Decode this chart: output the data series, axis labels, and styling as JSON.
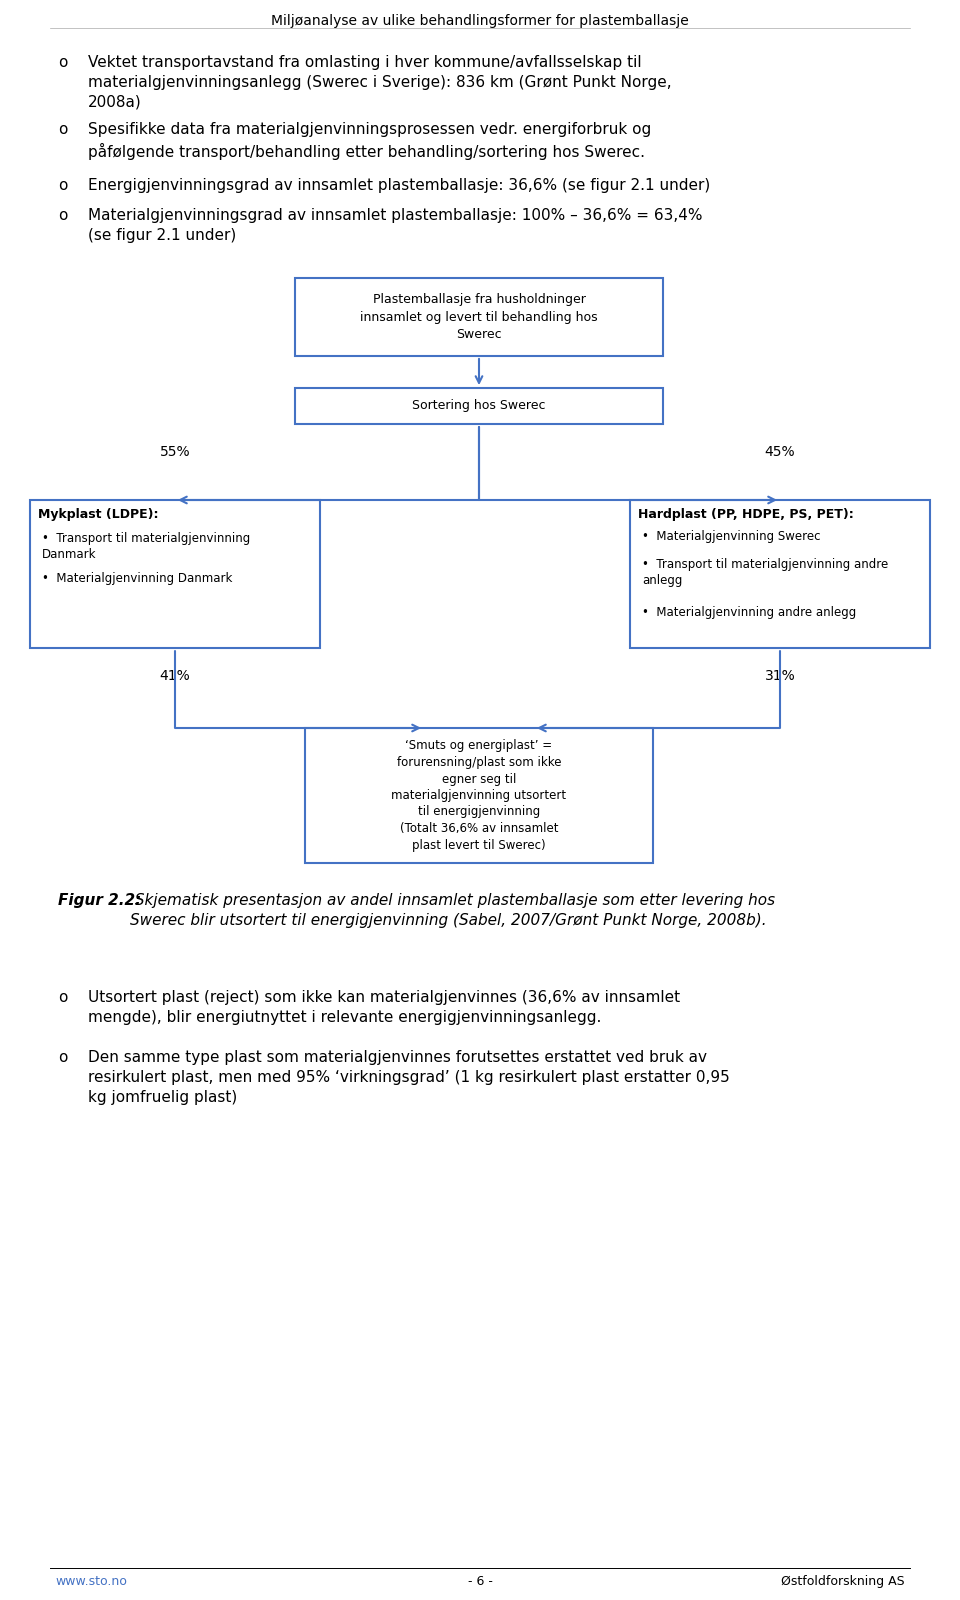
{
  "bg_color": "#ffffff",
  "header_text": "Miljøanalyse av ulike behandlingsformer for plastemballasje",
  "box_color": "#4472c4",
  "box_top_text": "Plastemballasje fra husholdninger\ninnsamlet og levert til behandling hos\nSwerec",
  "box_mid_text": "Sortering hos Swerec",
  "pct_55": "55%",
  "pct_45": "45%",
  "pct_41": "41%",
  "pct_31": "31%",
  "box_left_title": "Mykplast (LDPE):",
  "box_left_bullets": [
    "Transport til materialgjenvinning\nDanmark",
    "Materialgjenvinning Danmark"
  ],
  "box_right_title": "Hardplast (PP, HDPE, PS, PET):",
  "box_right_bullets": [
    "Materialgjenvinning Swerec",
    "Transport til materialgjenvinning andre\nanlegg",
    "Materialgjenvinning andre anlegg"
  ],
  "box_bottom_text": "‘Smuts og energiplast’ =\nforurensning/plast som ikke\negner seg til\nmaterialgjenvinning utsortert\ntil energigjenvinning\n(Totalt 36,6% av innsamlet\nplast levert til Swerec)",
  "figur_bold": "Figur 2.2:",
  "figur_italic": " Skjematisk presentasjon av andel innsamlet plastemballasje som etter levering hos\nSwerec blir utsortert til energigjenvinning (Sabel, 2007/Grønt Punkt Norge, 2008b).",
  "footer_left": "www.sto.no",
  "footer_mid": "- 6 -",
  "footer_right": "Østfoldforskning AS",
  "text_fontsize": 11,
  "small_fontsize": 9,
  "footer_fontsize": 9
}
